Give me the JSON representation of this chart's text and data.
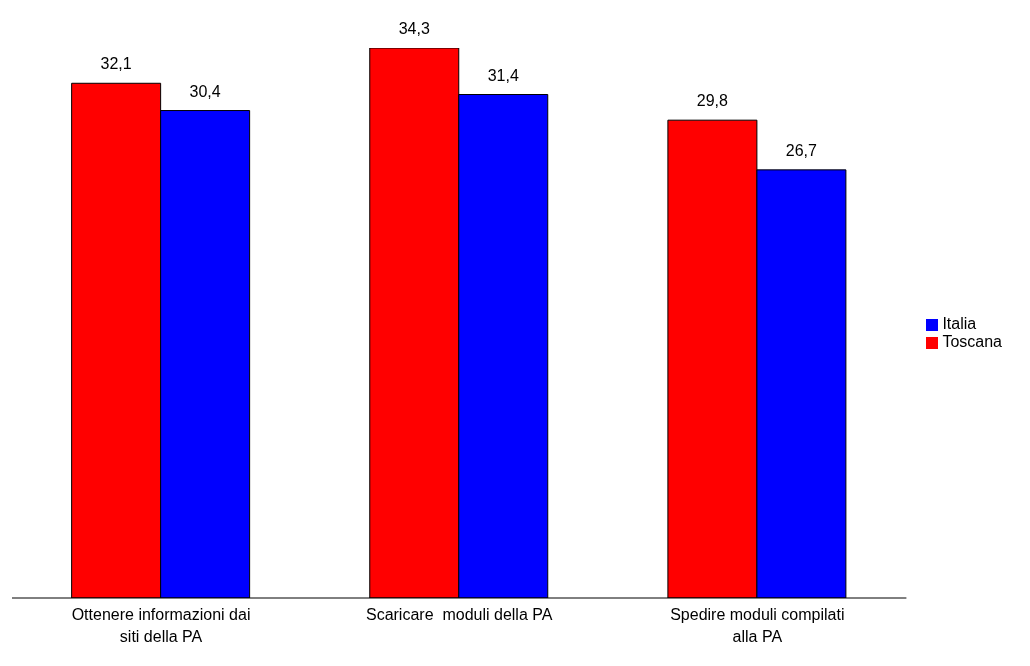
{
  "chart_data": {
    "type": "bar",
    "categories": [
      "Ottenere informazioni dai siti della PA",
      "Scaricare  moduli della PA",
      "Spedire moduli compilati alla PA"
    ],
    "series": [
      {
        "name": "Toscana",
        "color": "#ff0000",
        "values": [
          32.1,
          34.3,
          29.8
        ],
        "value_labels": [
          "32,1",
          "34,3",
          "29,8"
        ]
      },
      {
        "name": "Italia",
        "color": "#0000ff",
        "values": [
          30.4,
          31.4,
          26.7
        ],
        "value_labels": [
          "30,4",
          "31,4",
          "26,7"
        ]
      }
    ],
    "legend": "right",
    "tick_labels": "x",
    "grid": false
  }
}
